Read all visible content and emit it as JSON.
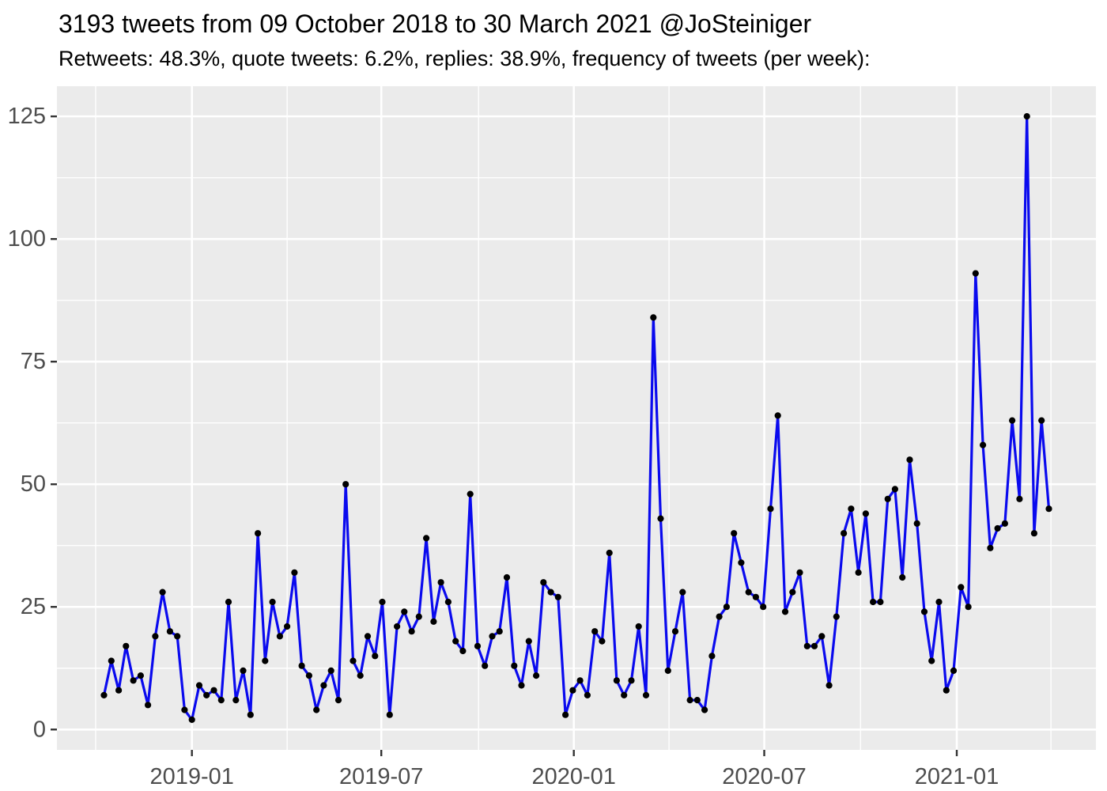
{
  "chart_data": {
    "type": "line",
    "title": "3193 tweets from 09 October 2018 to 30 March 2021 @JoSteiniger",
    "subtitle": "Retweets: 48.3%, quote tweets: 6.2%, replies: 38.9%, frequency of tweets (per week):",
    "series_name": "tweets per week",
    "x_start_date": "2018-10-09",
    "x_end_date": "2021-03-30",
    "x_interval_days": 7,
    "values": [
      7,
      14,
      8,
      17,
      10,
      11,
      5,
      19,
      28,
      20,
      19,
      4,
      2,
      9,
      7,
      8,
      6,
      26,
      6,
      12,
      3,
      40,
      14,
      26,
      19,
      21,
      32,
      13,
      11,
      4,
      9,
      12,
      6,
      50,
      14,
      11,
      19,
      15,
      26,
      3,
      21,
      24,
      20,
      23,
      39,
      22,
      30,
      26,
      18,
      16,
      48,
      17,
      13,
      19,
      20,
      31,
      13,
      9,
      18,
      11,
      30,
      28,
      27,
      3,
      8,
      10,
      7,
      20,
      18,
      36,
      10,
      7,
      10,
      21,
      7,
      84,
      43,
      12,
      20,
      28,
      6,
      6,
      4,
      15,
      23,
      25,
      40,
      34,
      28,
      27,
      25,
      45,
      64,
      24,
      28,
      32,
      17,
      17,
      19,
      9,
      23,
      40,
      45,
      32,
      44,
      26,
      26,
      47,
      49,
      31,
      55,
      42,
      24,
      14,
      26,
      8,
      12,
      29,
      25,
      93,
      58,
      37,
      41,
      42,
      63,
      47,
      125,
      40,
      63,
      45
    ],
    "x_tick_labels": [
      "2019-01",
      "2019-07",
      "2020-01",
      "2020-07",
      "2021-01"
    ],
    "x_tick_dates": [
      "2019-01-01",
      "2019-07-01",
      "2020-01-01",
      "2020-07-01",
      "2021-01-01"
    ],
    "x_minor_grid_dates": [
      "2018-10-01",
      "2019-04-02",
      "2019-10-02",
      "2020-04-01",
      "2020-10-01",
      "2021-04-01"
    ],
    "y_tick_labels": [
      "0",
      "25",
      "50",
      "75",
      "100",
      "125"
    ],
    "y_ticks": [
      0,
      25,
      50,
      75,
      100,
      125
    ],
    "y_minor_ticks": [
      12.5,
      37.5,
      62.5,
      87.5,
      112.5
    ],
    "ylim": [
      -4.15,
      131.15
    ],
    "x_expand_days": 45,
    "grid": "major+minor",
    "legend_position": "none",
    "colors": {
      "line": "#0A0AEE",
      "point": "#000000",
      "panel_bg": "#EBEBEB",
      "grid": "#FFFFFF",
      "axis_text": "#4D4D4D",
      "tick_mark": "#333333",
      "title_text": "#000000",
      "page_bg": "#FFFFFF"
    }
  }
}
